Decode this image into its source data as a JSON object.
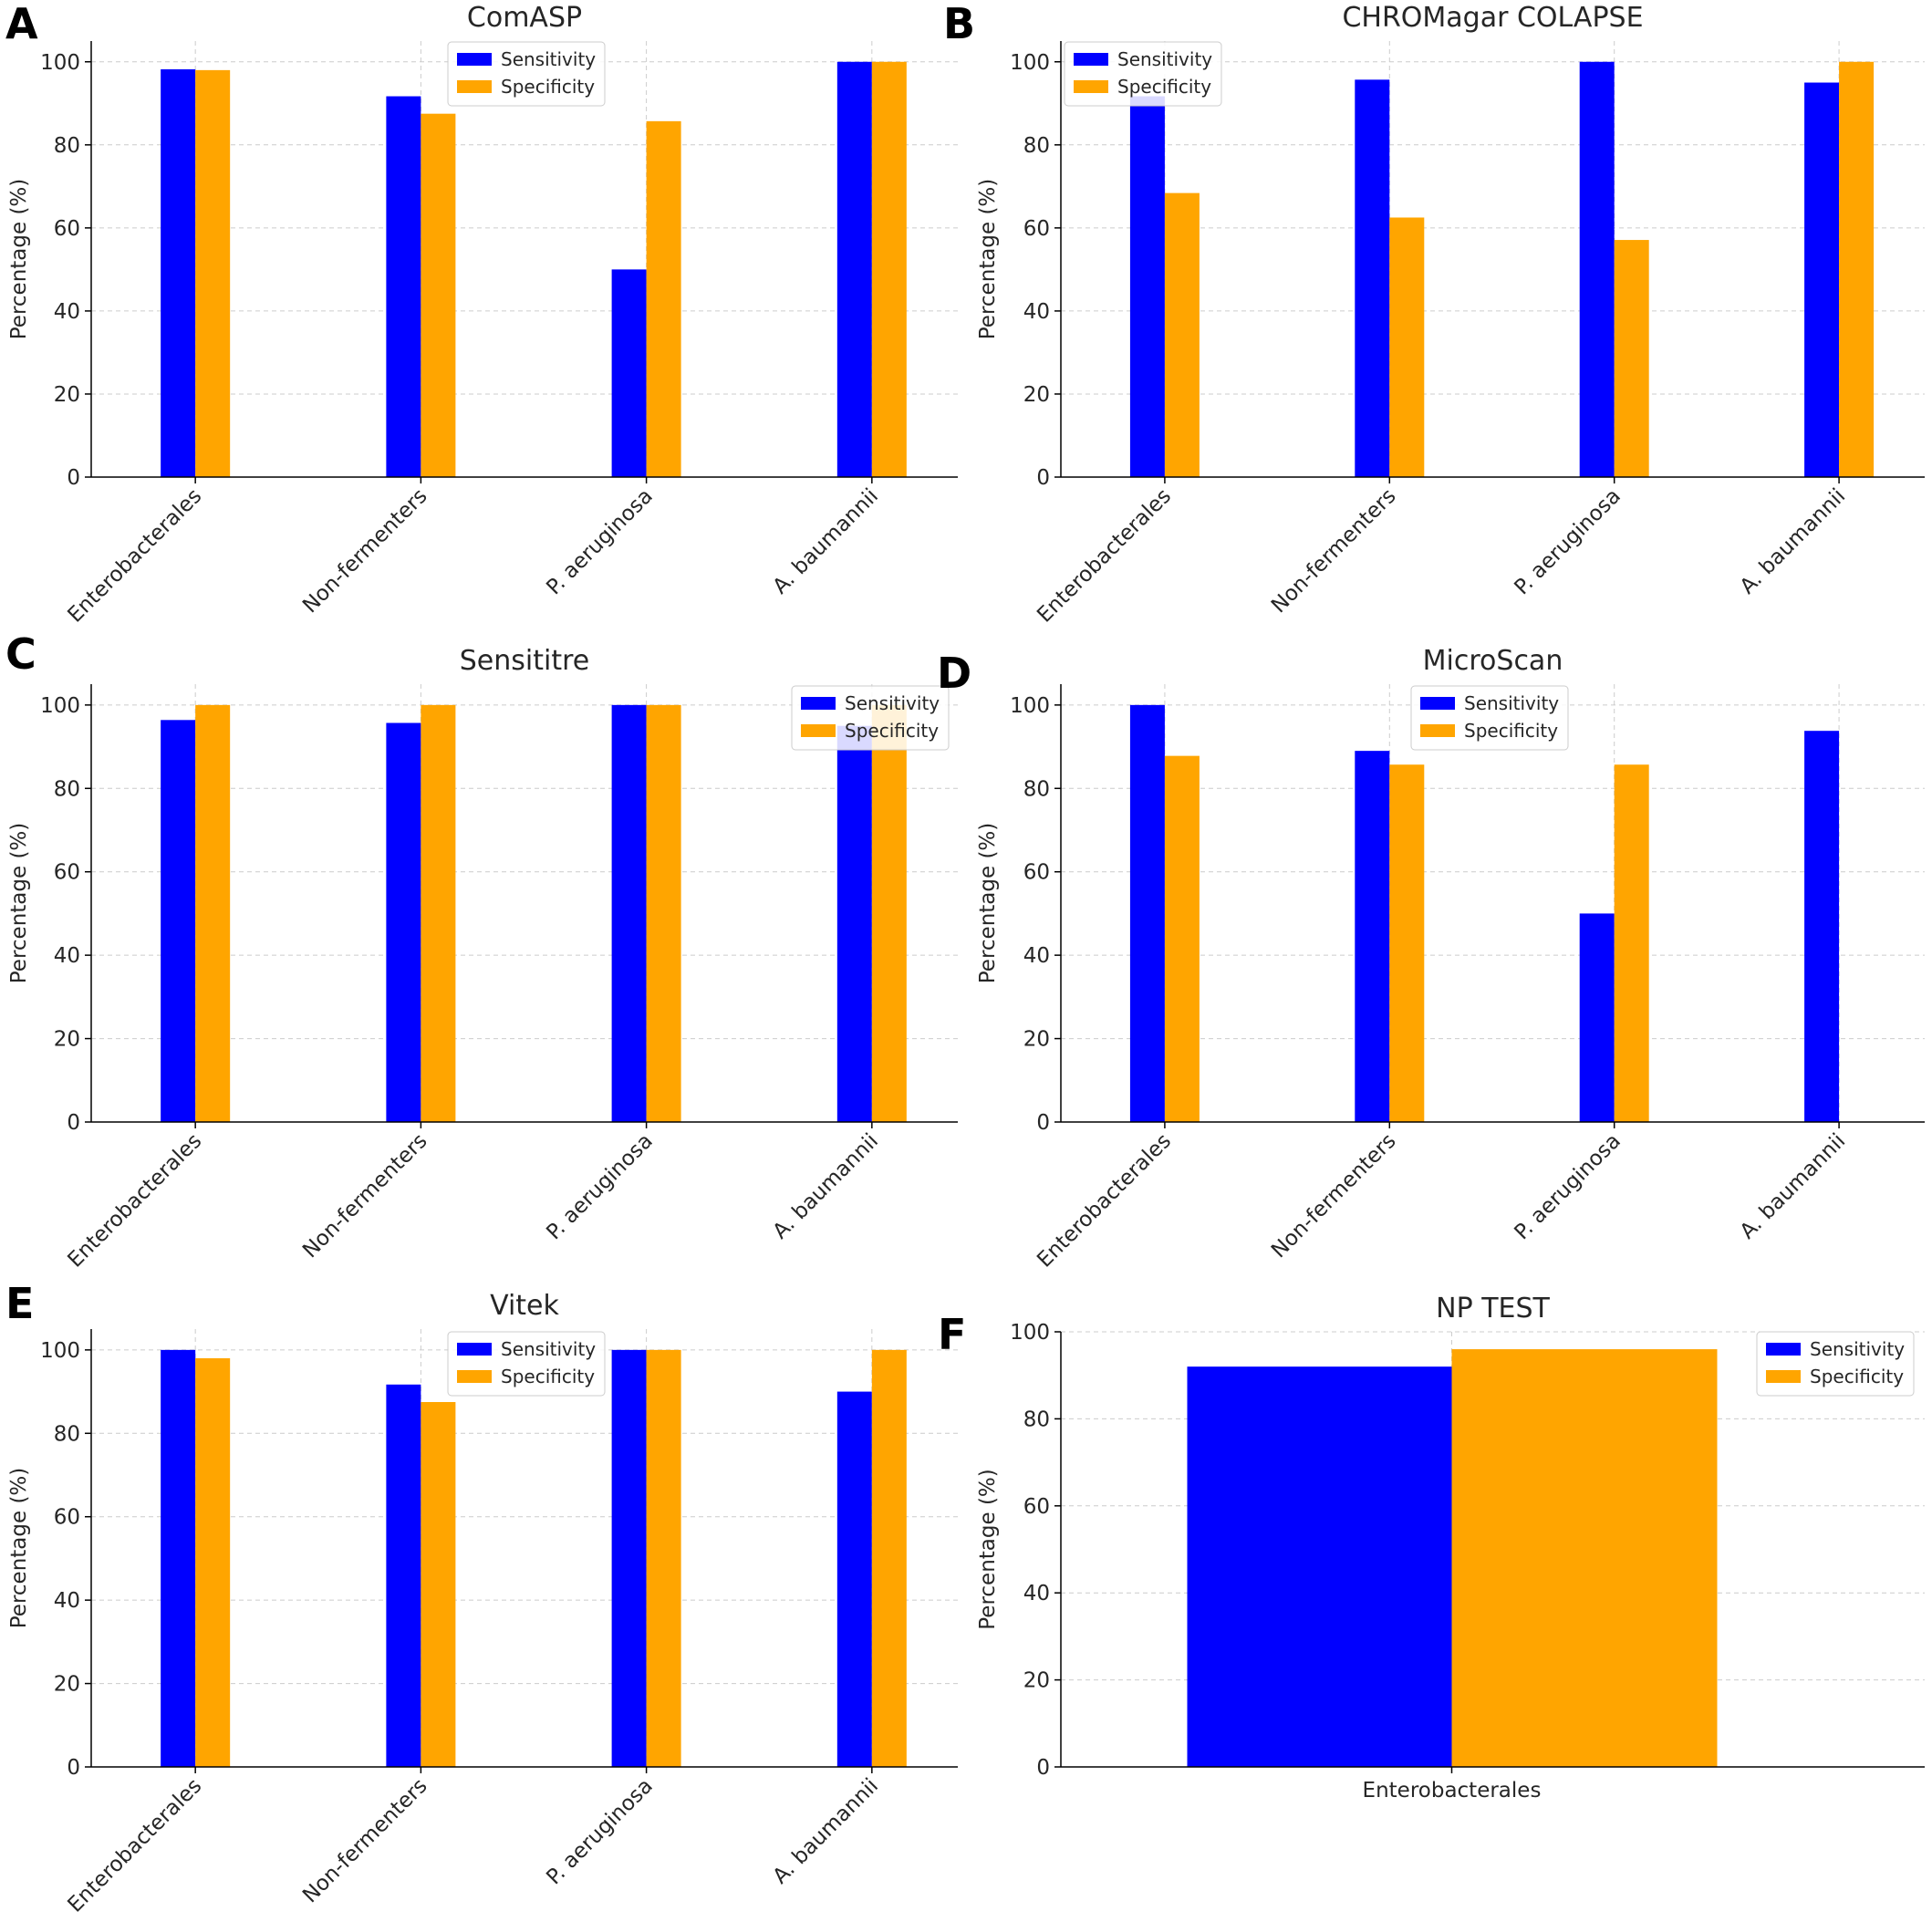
{
  "colors": {
    "sensitivity": "#0000ff",
    "specificity": "#ffa500"
  },
  "chart_data": [
    {
      "panel": "A",
      "type": "bar",
      "title": "ComASP",
      "ylabel": "Percentage (%)",
      "xlabel": "",
      "categories": [
        "Enterobacterales",
        "Non-fermenters",
        "P. aeruginosa",
        "A. baumannii"
      ],
      "series": [
        {
          "name": "Sensitivity",
          "values": [
            98.2,
            91.7,
            50,
            100
          ]
        },
        {
          "name": "Specificity",
          "values": [
            98,
            87.5,
            85.7,
            100
          ]
        }
      ],
      "ylim": [
        0,
        105
      ],
      "yticks": [
        0,
        20,
        40,
        60,
        80,
        100
      ],
      "legend": "top-center",
      "grid": true,
      "rotate_xticks": true
    },
    {
      "panel": "B",
      "type": "bar",
      "title": "CHROMagar COLAPSE",
      "ylabel": "Percentage (%)",
      "xlabel": "",
      "categories": [
        "Enterobacterales",
        "Non-fermenters",
        "P. aeruginosa",
        "A. baumannii"
      ],
      "series": [
        {
          "name": "Sensitivity",
          "values": [
            91.7,
            95.7,
            100,
            95
          ]
        },
        {
          "name": "Specificity",
          "values": [
            68.4,
            62.5,
            57.1,
            100
          ]
        }
      ],
      "ylim": [
        0,
        105
      ],
      "yticks": [
        0,
        20,
        40,
        60,
        80,
        100
      ],
      "legend": "top-left",
      "grid": true,
      "rotate_xticks": true
    },
    {
      "panel": "C",
      "type": "bar",
      "title": "Sensititre",
      "ylabel": "Percentage (%)",
      "xlabel": "",
      "categories": [
        "Enterobacterales",
        "Non-fermenters",
        "P. aeruginosa",
        "A. baumannii"
      ],
      "series": [
        {
          "name": "Sensitivity",
          "values": [
            96.4,
            95.7,
            100,
            95
          ]
        },
        {
          "name": "Specificity",
          "values": [
            100,
            100,
            100,
            100
          ]
        }
      ],
      "ylim": [
        0,
        105
      ],
      "yticks": [
        0,
        20,
        40,
        60,
        80,
        100
      ],
      "legend": "top-right",
      "grid": true,
      "rotate_xticks": true
    },
    {
      "panel": "D",
      "type": "bar",
      "title": "MicroScan",
      "ylabel": "Percentage (%)",
      "xlabel": "",
      "categories": [
        "Enterobacterales",
        "Non-fermenters",
        "P. aeruginosa",
        "A. baumannii"
      ],
      "series": [
        {
          "name": "Sensitivity",
          "values": [
            100,
            89,
            50,
            93.8
          ]
        },
        {
          "name": "Specificity",
          "values": [
            87.8,
            85.7,
            85.7,
            0
          ]
        }
      ],
      "ylim": [
        0,
        105
      ],
      "yticks": [
        0,
        20,
        40,
        60,
        80,
        100
      ],
      "legend": "top-center",
      "grid": true,
      "rotate_xticks": true
    },
    {
      "panel": "E",
      "type": "bar",
      "title": "Vitek",
      "ylabel": "Percentage (%)",
      "xlabel": "",
      "categories": [
        "Enterobacterales",
        "Non-fermenters",
        "P. aeruginosa",
        "A. baumannii"
      ],
      "series": [
        {
          "name": "Sensitivity",
          "values": [
            100,
            91.7,
            100,
            90
          ]
        },
        {
          "name": "Specificity",
          "values": [
            98,
            87.5,
            100,
            100
          ]
        }
      ],
      "ylim": [
        0,
        105
      ],
      "yticks": [
        0,
        20,
        40,
        60,
        80,
        100
      ],
      "legend": "top-center",
      "grid": true,
      "rotate_xticks": true
    },
    {
      "panel": "F",
      "type": "bar",
      "title": "NP TEST",
      "ylabel": "Percentage (%)",
      "xlabel": "",
      "categories": [
        "Enterobacterales"
      ],
      "series": [
        {
          "name": "Sensitivity",
          "values": [
            92
          ]
        },
        {
          "name": "Specificity",
          "values": [
            96
          ]
        }
      ],
      "ylim": [
        0,
        100
      ],
      "yticks": [
        0,
        20,
        40,
        60,
        80,
        100
      ],
      "legend": "top-right",
      "grid": true,
      "rotate_xticks": false
    }
  ]
}
